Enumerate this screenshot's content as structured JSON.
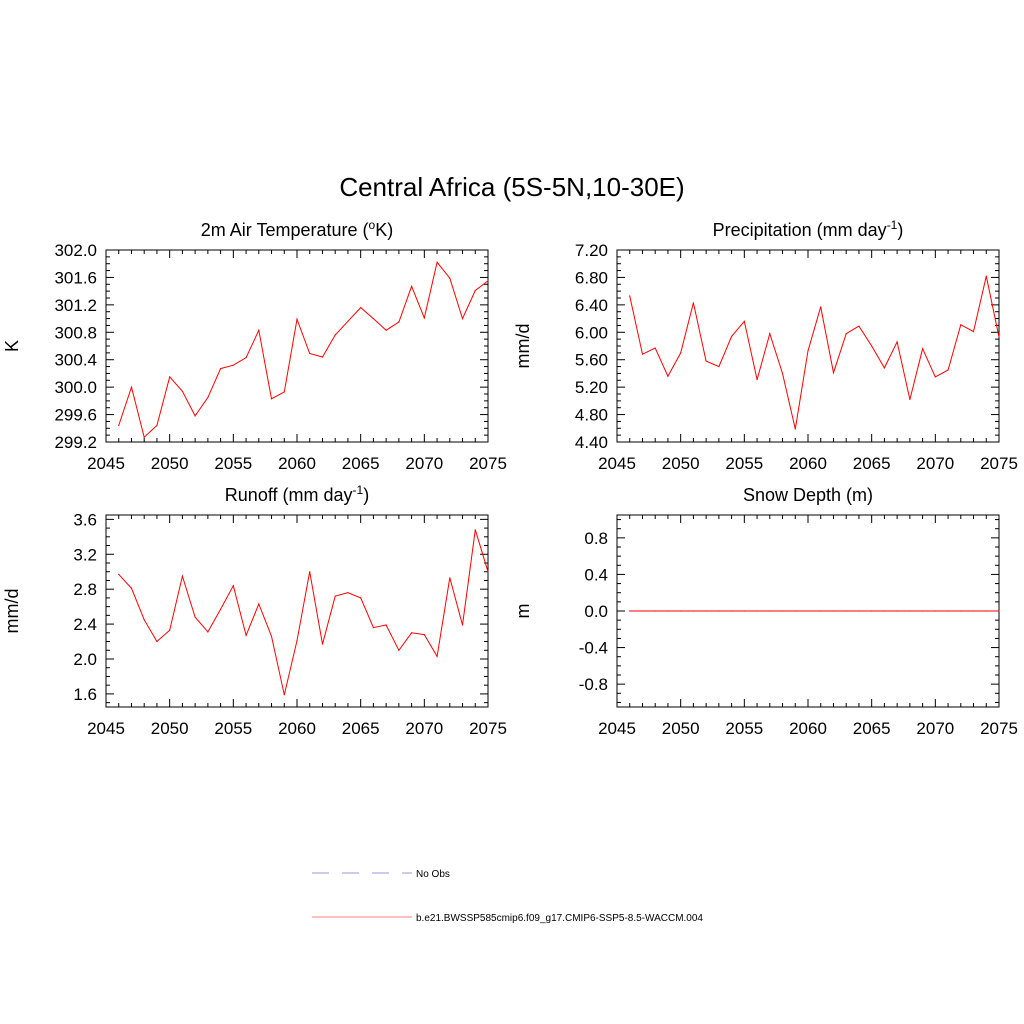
{
  "title": "Central Africa (5S-5N,10-30E)",
  "series_color": "#ff0000",
  "legend": {
    "items": [
      {
        "label": "No Obs",
        "color": "#aaaaee",
        "style": "dashed"
      },
      {
        "label": "b.e21.BWSSP585cmip6.f09_g17.CMIP6-SSP5-8.5-WACCM.004",
        "color": "#ff9999",
        "style": "solid"
      }
    ]
  },
  "chart_data": [
    {
      "type": "line",
      "title": "2m Air Temperature (oK)",
      "title_parts": {
        "pre": "2m Air Temperature (",
        "sup": "o",
        "post": "K)"
      },
      "ylabel": "K",
      "xlim": [
        2045,
        2075
      ],
      "xticks": [
        "2045",
        "2050",
        "2055",
        "2060",
        "2065",
        "2070",
        "2075"
      ],
      "ylim": [
        299.2,
        302.0
      ],
      "yticks": [
        "299.2",
        "299.6",
        "300.0",
        "300.4",
        "300.8",
        "301.2",
        "301.6",
        "302.0"
      ],
      "x": [
        2046,
        2047,
        2048,
        2049,
        2050,
        2051,
        2052,
        2053,
        2054,
        2055,
        2056,
        2057,
        2058,
        2059,
        2060,
        2061,
        2062,
        2063,
        2064,
        2065,
        2066,
        2067,
        2068,
        2069,
        2070,
        2071,
        2072,
        2073,
        2074,
        2075
      ],
      "values": [
        299.44,
        300.0,
        299.27,
        299.44,
        300.15,
        299.94,
        299.58,
        299.85,
        300.27,
        300.32,
        300.43,
        300.83,
        299.83,
        299.93,
        300.99,
        300.49,
        300.44,
        300.76,
        300.96,
        301.16,
        301.0,
        300.83,
        300.95,
        301.47,
        301.01,
        301.82,
        301.59,
        301.0,
        301.41,
        301.55
      ]
    },
    {
      "type": "line",
      "title": "Precipitation (mm day-1)",
      "title_parts": {
        "pre": "Precipitation (mm day",
        "sup": "-1",
        "post": ")"
      },
      "ylabel": "mm/d",
      "xlim": [
        2045,
        2075
      ],
      "xticks": [
        "2045",
        "2050",
        "2055",
        "2060",
        "2065",
        "2070",
        "2075"
      ],
      "ylim": [
        4.4,
        7.2
      ],
      "yticks": [
        "4.40",
        "4.80",
        "5.20",
        "5.60",
        "6.00",
        "6.40",
        "6.80",
        "7.20"
      ],
      "x": [
        2046,
        2047,
        2048,
        2049,
        2050,
        2051,
        2052,
        2053,
        2054,
        2055,
        2056,
        2057,
        2058,
        2059,
        2060,
        2061,
        2062,
        2063,
        2064,
        2065,
        2066,
        2067,
        2068,
        2069,
        2070,
        2071,
        2072,
        2073,
        2074,
        2075
      ],
      "values": [
        6.53,
        5.68,
        5.77,
        5.36,
        5.7,
        6.43,
        5.58,
        5.5,
        5.94,
        6.16,
        5.31,
        5.98,
        5.4,
        4.59,
        5.73,
        6.37,
        5.41,
        5.98,
        6.09,
        5.8,
        5.48,
        5.86,
        5.02,
        5.76,
        5.35,
        5.45,
        6.11,
        6.01,
        6.82,
        5.93
      ]
    },
    {
      "type": "line",
      "title": "Runoff (mm day-1)",
      "title_parts": {
        "pre": "Runoff (mm day",
        "sup": "-1",
        "post": ")"
      },
      "ylabel": "mm/d",
      "xlim": [
        2045,
        2075
      ],
      "xticks": [
        "2045",
        "2050",
        "2055",
        "2060",
        "2065",
        "2070",
        "2075"
      ],
      "ylim": [
        1.45,
        3.65
      ],
      "yticks": [
        "1.6",
        "2.0",
        "2.4",
        "2.8",
        "3.2",
        "3.6"
      ],
      "ytick_values": [
        1.6,
        2.0,
        2.4,
        2.8,
        3.2,
        3.6
      ],
      "x": [
        2046,
        2047,
        2048,
        2049,
        2050,
        2051,
        2052,
        2053,
        2054,
        2055,
        2056,
        2057,
        2058,
        2059,
        2060,
        2061,
        2062,
        2063,
        2064,
        2065,
        2066,
        2067,
        2068,
        2069,
        2070,
        2071,
        2072,
        2073,
        2074,
        2075
      ],
      "values": [
        2.97,
        2.81,
        2.45,
        2.2,
        2.33,
        2.95,
        2.48,
        2.31,
        2.57,
        2.84,
        2.27,
        2.63,
        2.26,
        1.59,
        2.21,
        3.0,
        2.17,
        2.72,
        2.76,
        2.7,
        2.36,
        2.39,
        2.1,
        2.3,
        2.28,
        2.03,
        2.93,
        2.39,
        3.48,
        3.0
      ]
    },
    {
      "type": "line",
      "title": "Snow Depth (m)",
      "title_parts": {
        "pre": "Snow Depth (m)",
        "sup": "",
        "post": ""
      },
      "ylabel": "m",
      "xlim": [
        2045,
        2075
      ],
      "xticks": [
        "2045",
        "2050",
        "2055",
        "2060",
        "2065",
        "2070",
        "2075"
      ],
      "ylim": [
        -1.05,
        1.05
      ],
      "yticks": [
        "-0.8",
        "-0.4",
        "0.0",
        "0.4",
        "0.8"
      ],
      "ytick_values": [
        -0.8,
        -0.4,
        0.0,
        0.4,
        0.8
      ],
      "x": [
        2046,
        2047,
        2048,
        2049,
        2050,
        2051,
        2052,
        2053,
        2054,
        2055,
        2056,
        2057,
        2058,
        2059,
        2060,
        2061,
        2062,
        2063,
        2064,
        2065,
        2066,
        2067,
        2068,
        2069,
        2070,
        2071,
        2072,
        2073,
        2074,
        2075
      ],
      "values": [
        0,
        0,
        0,
        0,
        0,
        0,
        0,
        0,
        0,
        0,
        0,
        0,
        0,
        0,
        0,
        0,
        0,
        0,
        0,
        0,
        0,
        0,
        0,
        0,
        0,
        0,
        0,
        0,
        0,
        0
      ]
    }
  ]
}
